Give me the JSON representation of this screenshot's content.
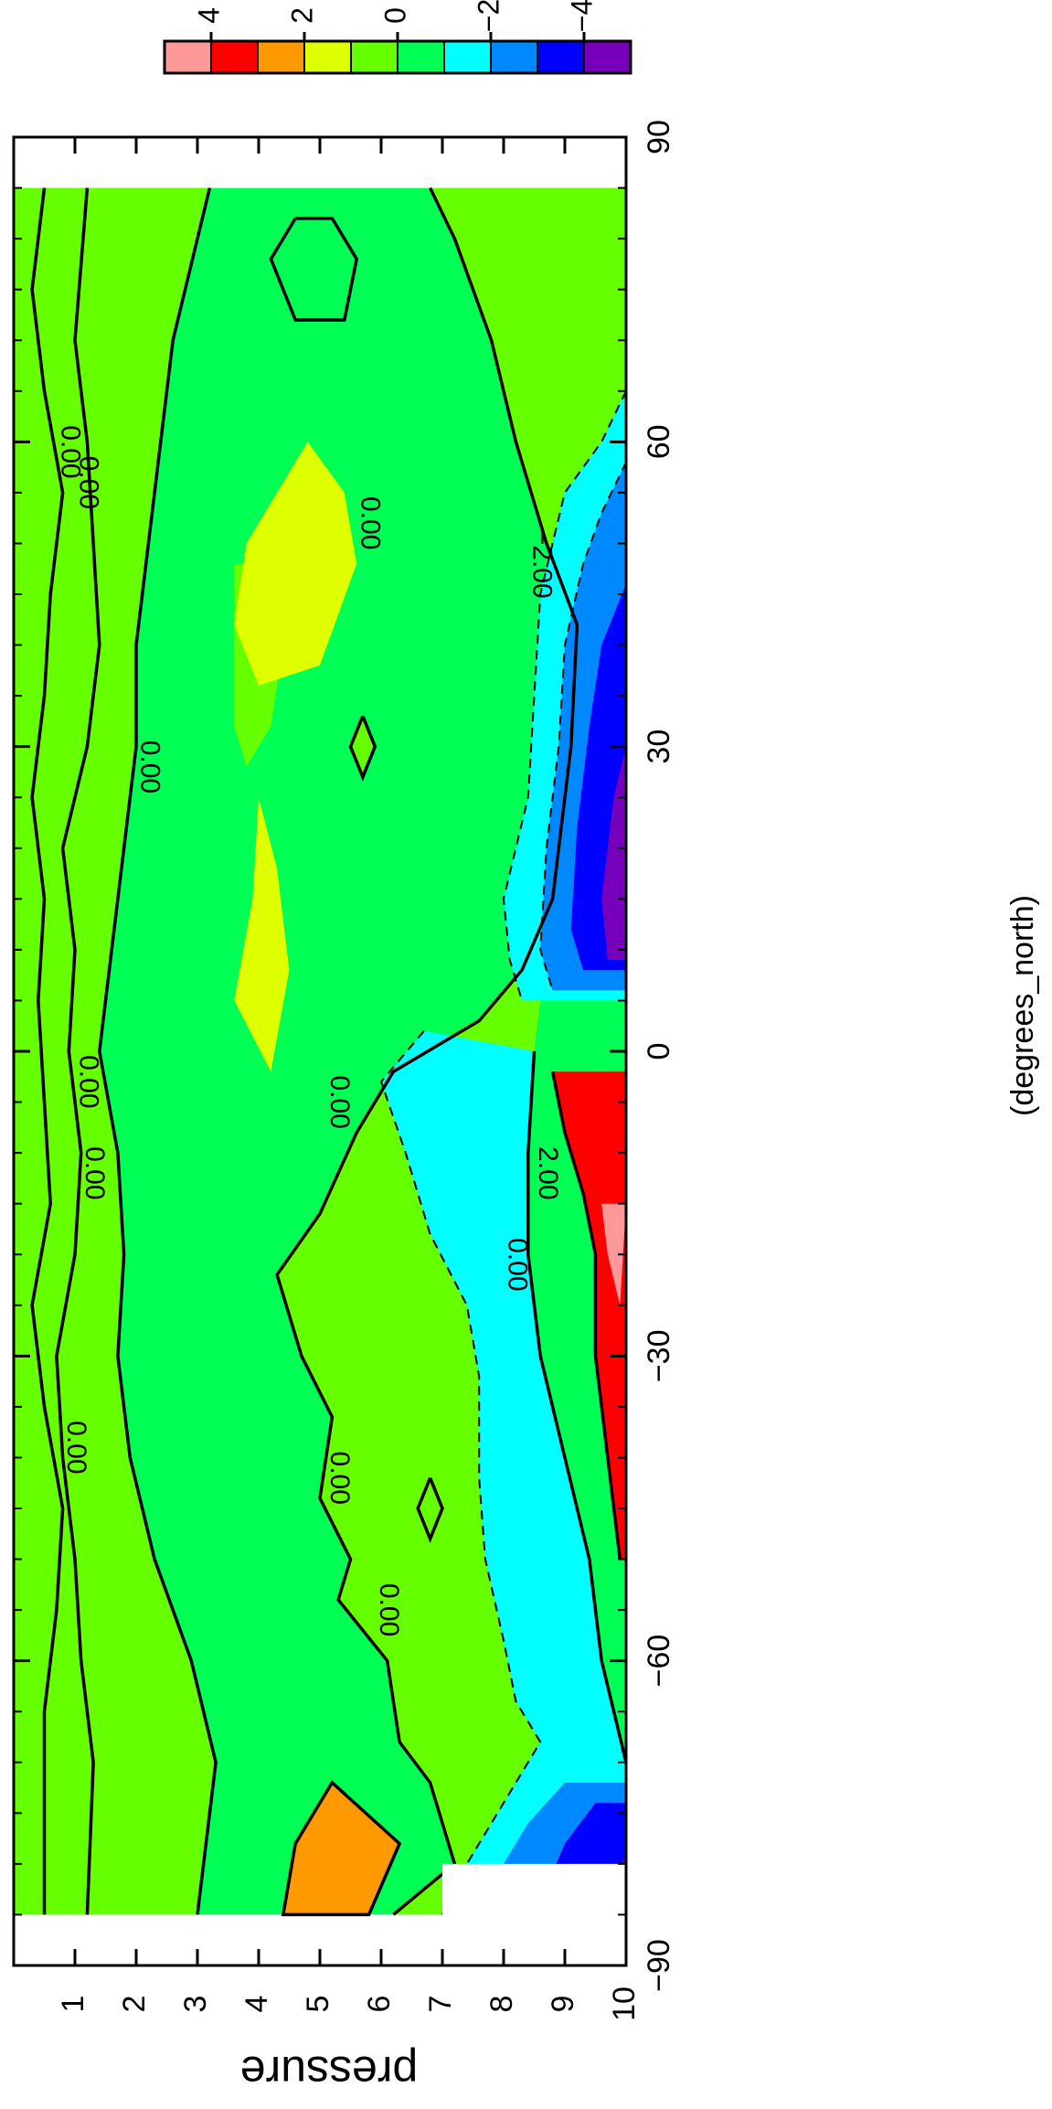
{
  "chart_data": {
    "type": "heatmap",
    "title": "",
    "xlabel": "(degrees_north)",
    "ylabel": "pressure",
    "xlim": [
      -90,
      90
    ],
    "ylim": [
      10,
      0
    ],
    "x_ticks": [
      -90,
      -60,
      -30,
      0,
      30,
      60,
      90
    ],
    "x_tick_labels": [
      "−90",
      "−60",
      "−30",
      "0",
      "30",
      "60",
      "90"
    ],
    "y_ticks": [
      1,
      2,
      3,
      4,
      5,
      6,
      7,
      8,
      9,
      10
    ],
    "y_tick_labels": [
      "1",
      "2",
      "3",
      "4",
      "5",
      "6",
      "7",
      "8",
      "9",
      "10"
    ],
    "colorbar": {
      "levels": [
        5,
        4,
        3,
        2,
        1,
        0,
        -1,
        -2,
        -3,
        -4,
        -5
      ],
      "tick_values": [
        4,
        2,
        0,
        -2,
        -4
      ],
      "tick_labels": [
        "4",
        "2",
        "0",
        "−2",
        "−4"
      ],
      "colors": [
        "#ff9999",
        "#ff0000",
        "#ff9900",
        "#ddff00",
        "#66ff00",
        "#00ff55",
        "#00ffff",
        "#0088ff",
        "#0000ff",
        "#7700bb"
      ]
    },
    "contour_labels": [
      {
        "x": -55,
        "y": 6.1,
        "text": "0.00"
      },
      {
        "x": -42,
        "y": 5.3,
        "text": "0.00"
      },
      {
        "x": -39,
        "y": 1.0,
        "text": "0.00"
      },
      {
        "x": -12,
        "y": 1.3,
        "text": "0.00"
      },
      {
        "x": -3,
        "y": 1.2,
        "text": "0.00"
      },
      {
        "x": -5,
        "y": 5.3,
        "text": "0.00"
      },
      {
        "x": -21,
        "y": 8.2,
        "text": "0.00"
      },
      {
        "x": -12,
        "y": 8.7,
        "text": "2.00"
      },
      {
        "x": 28,
        "y": 2.2,
        "text": "0.00"
      },
      {
        "x": 52,
        "y": 5.8,
        "text": "0.00"
      },
      {
        "x": 59,
        "y": 0.9,
        "text": "0.00"
      },
      {
        "x": 56,
        "y": 1.2,
        "text": "0.00"
      },
      {
        "x": 48,
        "y": 8.6,
        "text": "−2.00"
      }
    ]
  }
}
